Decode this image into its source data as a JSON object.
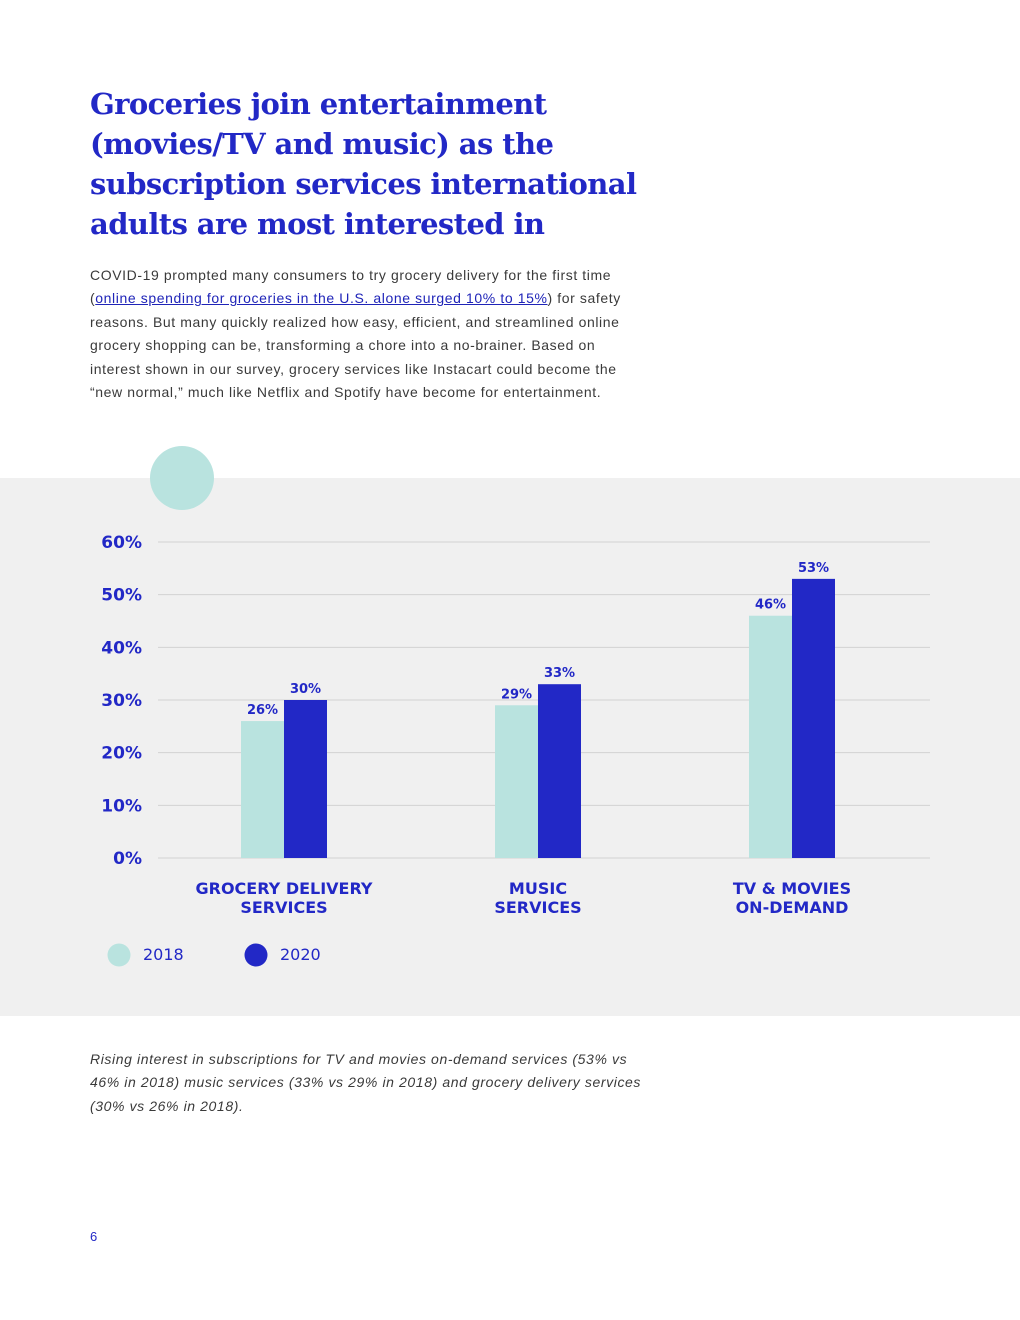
{
  "page": {
    "title": "Groceries join entertainment (movies/TV and music) as the subscription services international adults are most interested in",
    "intro_before_link": "COVID-19 prompted many consumers to try grocery delivery for the first time (",
    "intro_link": "online spending for groceries in the U.S. alone surged 10% to 15%",
    "intro_after_link": ") for safety reasons. But many quickly realized how easy, efficient, and streamlined online grocery shopping can be, transforming a chore into a no-brainer. Based on interest shown in our survey, grocery services like Instacart could become the “new normal,” much like Netflix and Spotify have become for entertainment.",
    "caption": "Rising interest in subscriptions for TV and movies on-demand services (53% vs 46% in 2018) music services (33% vs 29% in 2018) and grocery delivery services (30% vs 26% in 2018).",
    "page_number": "6"
  },
  "colors": {
    "title": "#2228c6",
    "series_2018": "#b9e3df",
    "series_2020": "#2228c6",
    "axis_text": "#2228c6",
    "gridline": "#d2d2d2",
    "panel_bg": "#f0f0f0"
  },
  "chart_data": {
    "type": "bar",
    "categories": [
      [
        "GROCERY DELIVERY",
        "SERVICES"
      ],
      [
        "MUSIC",
        "SERVICES"
      ],
      [
        "TV & MOVIES",
        "ON-DEMAND"
      ]
    ],
    "series": [
      {
        "name": "2018",
        "values": [
          26,
          29,
          46
        ],
        "labels": [
          "26%",
          "29%",
          "46%"
        ]
      },
      {
        "name": "2020",
        "values": [
          30,
          33,
          53
        ],
        "labels": [
          "30%",
          "33%",
          "53%"
        ]
      }
    ],
    "yticks": [
      0,
      10,
      20,
      30,
      40,
      50,
      60
    ],
    "ytick_labels": [
      "0%",
      "10%",
      "20%",
      "30%",
      "40%",
      "50%",
      "60%"
    ],
    "ylim": [
      0,
      60
    ],
    "grid": true,
    "legend": "bottom-left",
    "title": "",
    "xlabel": "",
    "ylabel": ""
  }
}
